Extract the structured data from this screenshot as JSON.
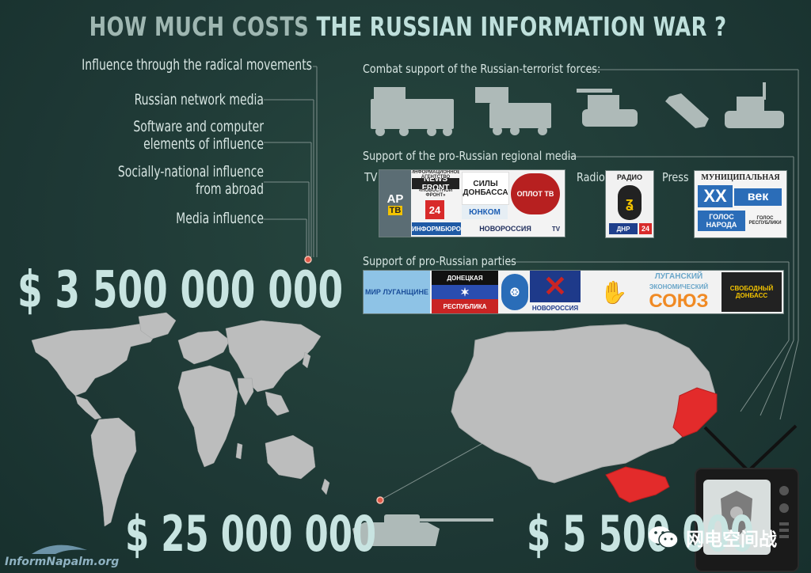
{
  "title": {
    "part1": "HOW MUCH COSTS",
    "part2": "THE RUSSIAN INFORMATION WAR ?"
  },
  "left_labels": [
    "Influence through the radical movements",
    "Russian network media",
    "Software and computer elements of influence",
    "Socially-national influence from abroad",
    "Media influence"
  ],
  "left_labels_lines": {
    "software_1": "Software and computer",
    "software_2": "elements of influence",
    "social_1": "Socially-national influence",
    "social_2": "from abroad"
  },
  "sections": {
    "combat": "Combat support of the Russian-terrorist forces:",
    "media": "Support of the pro-Russian regional media",
    "parties": "Support of pro-Russian parties"
  },
  "media_types": {
    "tv": "TV",
    "radio": "Radio",
    "press": "Press"
  },
  "tv_logos": {
    "ar": "AP",
    "tb": "TB",
    "newsfront": "NEWS FRONT",
    "newsfront_sub": "«НОВОСТНОЙ ФРОНТ»",
    "agency": "ИНФОРМАЦИОННОЕ АГЕНТСТВО",
    "num24": "24",
    "sily": "СИЛЫ ДОНБАССА",
    "yugnom": "ЮНКОМ",
    "oplot": "ОПЛОТ ТВ",
    "inform": "ИНФОРМБЮРО",
    "novorossiya": "НОВОРОССИЯ",
    "tv": "TV"
  },
  "radio_logos": {
    "radio": "РАДИО",
    "dnr": "ДНР",
    "num24": "24"
  },
  "press_logos": {
    "municipal": "МУНИЦИПАЛЬНАЯ",
    "xx": "XX",
    "vek": "век",
    "golos": "ГОЛОС НАРОДА",
    "golos_sub": "ГОЛОС РЕСПУБЛИКИ"
  },
  "party_logos": {
    "mir": "МИР ЛУГАНЩИНЕ",
    "donetsk": "ДОНЕЦКАЯ",
    "respublika": "РЕСПУБЛИКА",
    "novorossiya": "НОВОРОССИЯ",
    "lugansk": "ЛУГАНСКИЙ",
    "economic": "ЭКОНОМИЧЕСКИЙ",
    "soyuz": "СОЮЗ",
    "svobodny": "СВОБОДНЫЙ ДОНБАСС"
  },
  "amounts": {
    "global": "$ 3 500 000 000",
    "military": "$ 25 000 000",
    "regional": "$ 5 500 000"
  },
  "watermark": "InformNapalm.org",
  "wechat": "网电空间战",
  "colors": {
    "accent_red": "#e32b2b",
    "text": "#d7e5e2",
    "amount": "#c8e4e1",
    "map_gray": "#bcbdbd"
  }
}
